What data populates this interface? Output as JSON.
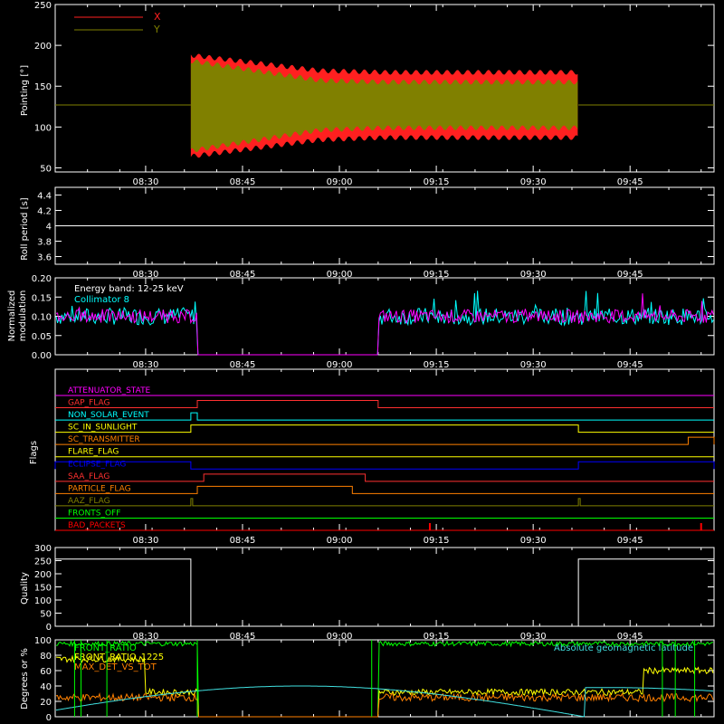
{
  "time_axis": {
    "start": "08:16",
    "end": "09:58",
    "tick_labels": [
      "08:30",
      "08:45",
      "09:00",
      "09:15",
      "09:30",
      "09:45"
    ]
  },
  "colors": {
    "background": "#000000",
    "frame": "#ffffff",
    "x_series": "#ff2020",
    "y_series": "#808000",
    "collimator": "#00ffff",
    "modulation": "#ff00ff",
    "green": "#00ff00",
    "yellow": "#ffff00",
    "orange": "#ff8000",
    "cyan": "#40e0e0"
  },
  "chart_data": [
    {
      "type": "line",
      "ylabel": "Pointing [°]",
      "ylim": [
        45,
        250
      ],
      "yticks": [
        50,
        100,
        150,
        200,
        250
      ],
      "legend_position": "top-left",
      "series": [
        {
          "name": "X",
          "color": "#ff2020",
          "baseline": 127,
          "active": [
            "08:37",
            "09:37"
          ],
          "envelope_upper": 185,
          "envelope_lower": 85
        },
        {
          "name": "Y",
          "color": "#808000",
          "baseline": 127,
          "active": [
            "08:37",
            "09:37"
          ],
          "envelope_upper": 165,
          "envelope_lower": 105
        }
      ]
    },
    {
      "type": "line",
      "ylabel": "Roll period [s]",
      "ylim": [
        3.5,
        4.5
      ],
      "yticks": [
        3.6,
        3.8,
        4.0,
        4.2,
        4.4
      ],
      "series": [
        {
          "value": 4.0,
          "color": "#ffffff"
        }
      ]
    },
    {
      "type": "line",
      "ylabel": "Normalized\nmodulation",
      "ylim": [
        0,
        0.2
      ],
      "yticks": [
        "0.00",
        "0.05",
        "0.10",
        "0.15",
        "0.20"
      ],
      "annotation": "Energy band: 12-25 keV",
      "legend": [
        {
          "name": "Collimator 8",
          "color": "#00ffff"
        }
      ],
      "gap": [
        "08:38",
        "09:06"
      ],
      "typical_value": 0.1
    },
    {
      "type": "table",
      "ylabel": "Flags",
      "flags": [
        {
          "name": "ATTENUATOR_STATE",
          "color": "#ff00ff",
          "on": []
        },
        {
          "name": "GAP_FLAG",
          "color": "#ff3030",
          "on": [
            [
              "08:38",
              "09:06"
            ]
          ]
        },
        {
          "name": "NON_SOLAR_EVENT",
          "color": "#00ffff",
          "on": [
            [
              "08:37",
              "08:38"
            ]
          ]
        },
        {
          "name": "SC_IN_SUNLIGHT",
          "color": "#ffff00",
          "on": [
            [
              "08:37",
              "09:37"
            ]
          ]
        },
        {
          "name": "SC_TRANSMITTER",
          "color": "#ff8000",
          "on": [
            [
              "09:54",
              "09:58"
            ]
          ]
        },
        {
          "name": "FLARE_FLAG",
          "color": "#ffff00",
          "on": []
        },
        {
          "name": "ECLIPSE_FLAG",
          "color": "#0000ff",
          "on": [
            [
              "08:16",
              "08:37"
            ],
            [
              "09:37",
              "09:58"
            ]
          ]
        },
        {
          "name": "SAA_FLAG",
          "color": "#ff3030",
          "on": [
            [
              "08:39",
              "09:04"
            ]
          ]
        },
        {
          "name": "PARTICLE_FLAG",
          "color": "#ff8000",
          "on": [
            [
              "08:38",
              "09:02"
            ]
          ]
        },
        {
          "name": "AAZ_FLAG",
          "color": "#808000",
          "on": [
            [
              "08:37",
              "08:37"
            ],
            [
              "09:37",
              "09:37"
            ]
          ]
        },
        {
          "name": "FRONTS_OFF",
          "color": "#00ff00",
          "on": []
        },
        {
          "name": "BAD_PACKETS",
          "color": "#ff0000",
          "on": [],
          "spikes": [
            "09:14",
            "09:56"
          ]
        }
      ]
    },
    {
      "type": "line",
      "ylabel": "Quality",
      "ylim": [
        0,
        300
      ],
      "yticks": [
        0,
        50,
        100,
        150,
        200,
        250,
        300
      ],
      "series": [
        {
          "color": "#ffffff",
          "points": [
            [
              "08:16",
              256
            ],
            [
              "08:37",
              256
            ],
            [
              "08:37",
              0
            ],
            [
              "09:37",
              0
            ],
            [
              "09:37",
              256
            ],
            [
              "09:58",
              256
            ]
          ]
        }
      ]
    },
    {
      "type": "line",
      "ylabel": "Degrees or %",
      "ylim": [
        0,
        100
      ],
      "yticks": [
        0,
        20,
        40,
        60,
        80,
        100
      ],
      "series": [
        {
          "name": "FRONT_RATIO",
          "color": "#00ff00"
        },
        {
          "name": "FRONT_RATIO_1225",
          "color": "#ffff00"
        },
        {
          "name": "MAX_DET_VS_TOT",
          "color": "#ff8000"
        },
        {
          "name": "Absolute geomagnetic latitude",
          "color": "#40e0e0"
        }
      ]
    }
  ]
}
